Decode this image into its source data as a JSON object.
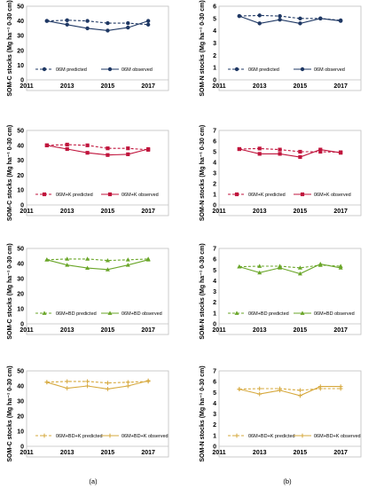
{
  "captions": [
    "(a)",
    "(b)"
  ],
  "chart_data": [
    {
      "type": "line",
      "ylabel": "SOM-C stocks (Mg ha⁻¹ 0-30 cm)",
      "ylim": [
        0,
        50
      ],
      "yticks": [
        0,
        10,
        20,
        30,
        40,
        50
      ],
      "xlim": [
        2011,
        2018
      ],
      "xticks": [
        2011,
        2013,
        2015,
        2017
      ],
      "grid": false,
      "legend_position": "inside-bottom",
      "color": "#1f3864",
      "marker": "circle",
      "x": [
        2012,
        2013,
        2014,
        2015,
        2016,
        2017
      ],
      "series": [
        {
          "name": "06M predicted",
          "style": "dashed",
          "values": [
            40,
            40.5,
            40,
            38.5,
            38.5,
            37.5
          ]
        },
        {
          "name": "06M observed",
          "style": "solid",
          "values": [
            40,
            37.5,
            35,
            33.5,
            35.5,
            40
          ]
        }
      ]
    },
    {
      "type": "line",
      "ylabel": "SOM-N stocks (Mg ha⁻¹ 0-30 cm)",
      "ylim": [
        0,
        6
      ],
      "yticks": [
        0,
        1,
        2,
        3,
        4,
        5,
        6
      ],
      "xlim": [
        2011,
        2018
      ],
      "xticks": [
        2011,
        2013,
        2015,
        2017
      ],
      "grid": false,
      "legend_position": "inside-bottom",
      "color": "#1f3864",
      "marker": "circle",
      "x": [
        2012,
        2013,
        2014,
        2015,
        2016,
        2017
      ],
      "series": [
        {
          "name": "06M predicted",
          "style": "dashed",
          "values": [
            5.2,
            5.25,
            5.2,
            5.0,
            5.0,
            4.85
          ]
        },
        {
          "name": "06M observed",
          "style": "solid",
          "values": [
            5.2,
            4.6,
            4.9,
            4.6,
            5.0,
            4.8
          ]
        }
      ]
    },
    {
      "type": "line",
      "ylabel": "SOM-C stocks (Mg ha⁻¹ 0-30 cm)",
      "ylim": [
        0,
        50
      ],
      "yticks": [
        0,
        10,
        20,
        30,
        40,
        50
      ],
      "xlim": [
        2011,
        2018
      ],
      "xticks": [
        2011,
        2013,
        2015,
        2017
      ],
      "grid": false,
      "legend_position": "inside-bottom",
      "color": "#c0143c",
      "marker": "square",
      "x": [
        2012,
        2013,
        2014,
        2015,
        2016,
        2017
      ],
      "series": [
        {
          "name": "06M+K predicted",
          "style": "dashed",
          "values": [
            40,
            40.5,
            40,
            38,
            38,
            37
          ]
        },
        {
          "name": "06M+K observed",
          "style": "solid",
          "values": [
            40,
            37.5,
            35,
            33.5,
            34,
            37.5
          ]
        }
      ]
    },
    {
      "type": "line",
      "ylabel": "SOM-N stocks (Mg ha⁻¹ 0-30 cm)",
      "ylim": [
        0,
        7
      ],
      "yticks": [
        0,
        1,
        2,
        3,
        4,
        5,
        6,
        7
      ],
      "xlim": [
        2011,
        2018
      ],
      "xticks": [
        2011,
        2013,
        2015,
        2017
      ],
      "grid": false,
      "legend_position": "inside-bottom",
      "color": "#c0143c",
      "marker": "square",
      "x": [
        2012,
        2013,
        2014,
        2015,
        2016,
        2017
      ],
      "series": [
        {
          "name": "06M+K predicted",
          "style": "dashed",
          "values": [
            5.25,
            5.3,
            5.2,
            5.0,
            5.0,
            4.95
          ]
        },
        {
          "name": "06M+K observed",
          "style": "solid",
          "values": [
            5.25,
            4.8,
            4.8,
            4.5,
            5.2,
            4.9
          ]
        }
      ]
    },
    {
      "type": "line",
      "ylabel": "SOM-C stocks (Mg ha⁻¹ 0-30 cm)",
      "ylim": [
        0,
        50
      ],
      "yticks": [
        0,
        10,
        20,
        30,
        40,
        50
      ],
      "xlim": [
        2011,
        2018
      ],
      "xticks": [
        2011,
        2013,
        2015,
        2017
      ],
      "grid": false,
      "legend_position": "inside-bottom",
      "color": "#6aa629",
      "marker": "triangle",
      "x": [
        2012,
        2013,
        2014,
        2015,
        2016,
        2017
      ],
      "series": [
        {
          "name": "06M+BD predicted",
          "style": "dashed",
          "values": [
            42.5,
            43,
            43,
            42,
            42.5,
            43
          ]
        },
        {
          "name": "06M+BD observed",
          "style": "solid",
          "values": [
            42.5,
            39,
            37,
            36,
            39,
            42.5
          ]
        }
      ]
    },
    {
      "type": "line",
      "ylabel": "SOM-N stocks (Mg ha⁻¹ 0-30 cm)",
      "ylim": [
        0,
        7
      ],
      "yticks": [
        0,
        1,
        2,
        3,
        4,
        5,
        6,
        7
      ],
      "xlim": [
        2011,
        2018
      ],
      "xticks": [
        2011,
        2013,
        2015,
        2017
      ],
      "grid": false,
      "legend_position": "inside-bottom",
      "color": "#6aa629",
      "marker": "triangle",
      "x": [
        2012,
        2013,
        2014,
        2015,
        2016,
        2017
      ],
      "series": [
        {
          "name": "06M+BD predicted",
          "style": "dashed",
          "values": [
            5.3,
            5.35,
            5.35,
            5.2,
            5.45,
            5.35
          ]
        },
        {
          "name": "06M+BD observed",
          "style": "solid",
          "values": [
            5.3,
            4.75,
            5.2,
            4.65,
            5.55,
            5.2
          ]
        }
      ]
    },
    {
      "type": "line",
      "ylabel": "SOM-C stocks (Mg ha⁻¹ 0-30 cm)",
      "ylim": [
        0,
        50
      ],
      "yticks": [
        0,
        10,
        20,
        30,
        40,
        50
      ],
      "xlim": [
        2011,
        2018
      ],
      "xticks": [
        2011,
        2013,
        2015,
        2017
      ],
      "grid": false,
      "legend_position": "inside-bottom",
      "color": "#d6a83c",
      "marker": "plus",
      "x": [
        2012,
        2013,
        2014,
        2015,
        2016,
        2017
      ],
      "series": [
        {
          "name": "06M+BD+K predicted",
          "style": "dashed",
          "values": [
            42.5,
            43,
            43,
            42,
            42.5,
            43
          ]
        },
        {
          "name": "06M+BD+K observed",
          "style": "solid",
          "values": [
            42.5,
            38.5,
            40,
            38,
            40,
            43.5
          ]
        }
      ]
    },
    {
      "type": "line",
      "ylabel": "SOM-N stocks (Mg ha⁻¹ 0-30 cm)",
      "ylim": [
        0,
        7
      ],
      "yticks": [
        0,
        1,
        2,
        3,
        4,
        5,
        6,
        7
      ],
      "xlim": [
        2011,
        2018
      ],
      "xticks": [
        2011,
        2013,
        2015,
        2017
      ],
      "grid": false,
      "legend_position": "inside-bottom",
      "color": "#d6a83c",
      "marker": "plus",
      "x": [
        2012,
        2013,
        2014,
        2015,
        2016,
        2017
      ],
      "series": [
        {
          "name": "06M+BD+K predicted",
          "style": "dashed",
          "values": [
            5.3,
            5.35,
            5.35,
            5.2,
            5.35,
            5.35
          ]
        },
        {
          "name": "06M+BD+K observed",
          "style": "solid",
          "values": [
            5.3,
            4.85,
            5.2,
            4.7,
            5.55,
            5.55
          ]
        }
      ]
    }
  ]
}
